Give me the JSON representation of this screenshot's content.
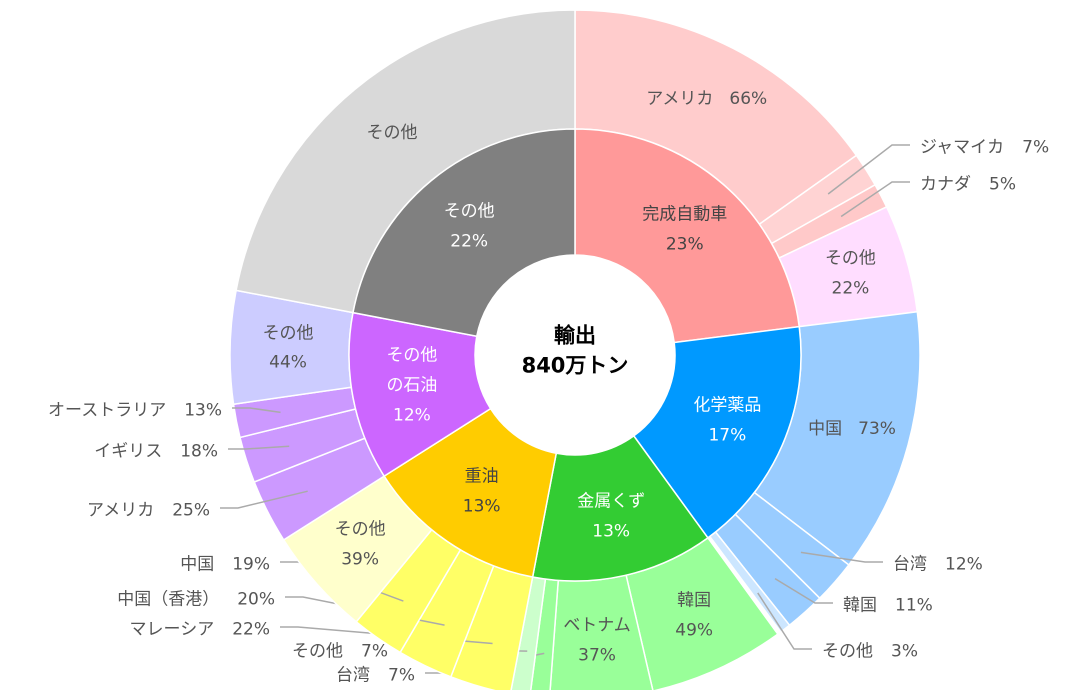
{
  "chart_data": {
    "type": "sunburst",
    "center_label": [
      "輸出",
      "840万トン"
    ],
    "nodes": [
      {
        "name": "完成自動車",
        "value": 23,
        "value_label": "23%",
        "color": "#ff9999",
        "children": [
          {
            "name": "アメリカ",
            "value": 66,
            "value_label": "66%",
            "color": "#ffcccc"
          },
          {
            "name": "ジャマイカ",
            "value": 7,
            "value_label": "7%",
            "color": "#ffd3d3"
          },
          {
            "name": "カナダ",
            "value": 5,
            "value_label": "5%",
            "color": "#ffc9c9"
          },
          {
            "name": "その他",
            "value": 22,
            "value_label": "22%",
            "color": "#ffddff"
          }
        ]
      },
      {
        "name": "化学薬品",
        "value": 17,
        "value_label": "17%",
        "color": "#0099ff",
        "children": [
          {
            "name": "中国",
            "value": 73,
            "value_label": "73%",
            "color": "#99ccff"
          },
          {
            "name": "台湾",
            "value": 12,
            "value_label": "12%",
            "color": "#99ccff"
          },
          {
            "name": "韓国",
            "value": 11,
            "value_label": "11%",
            "color": "#99ccff"
          },
          {
            "name": "その他",
            "value": 3,
            "value_label": "3%",
            "color": "#cce6ff"
          }
        ]
      },
      {
        "name": "金属くず",
        "value": 13,
        "value_label": "13%",
        "color": "#33cc33",
        "children": [
          {
            "name": "韓国",
            "value": 49,
            "value_label": "49%",
            "color": "#99ff99"
          },
          {
            "name": "ベトナム",
            "value": 37,
            "value_label": "37%",
            "color": "#99ff99"
          },
          {
            "name": "台湾",
            "value": 7,
            "value_label": "7%",
            "color": "#99ff99"
          },
          {
            "name": "その他",
            "value": 7,
            "value_label": "7%",
            "color": "#ccffcc"
          }
        ]
      },
      {
        "name": "重油",
        "value": 13,
        "value_label": "13%",
        "color": "#ffcc00",
        "children": [
          {
            "name": "マレーシア",
            "value": 22,
            "value_label": "22%",
            "color": "#ffff66"
          },
          {
            "name": "中国（香港）",
            "value": 20,
            "value_label": "20%",
            "color": "#ffff66"
          },
          {
            "name": "中国",
            "value": 19,
            "value_label": "19%",
            "color": "#ffff66"
          },
          {
            "name": "その他",
            "value": 39,
            "value_label": "39%",
            "color": "#ffffcc"
          }
        ]
      },
      {
        "name": "その他の石油",
        "value": 12,
        "value_label": "12%",
        "color": "#cc66ff",
        "children": [
          {
            "name": "アメリカ",
            "value": 25,
            "value_label": "25%",
            "color": "#cc99ff"
          },
          {
            "name": "イギリス",
            "value": 18,
            "value_label": "18%",
            "color": "#cc99ff"
          },
          {
            "name": "オーストラリア",
            "value": 13,
            "value_label": "13%",
            "color": "#cc99ff"
          },
          {
            "name": "その他",
            "value": 44,
            "value_label": "44%",
            "color": "#ccccff"
          }
        ]
      },
      {
        "name": "その他",
        "value": 22,
        "value_label": "22%",
        "color": "#808080",
        "children": [
          {
            "name": "その他",
            "value": 100,
            "color": "#d9d9d9"
          }
        ]
      }
    ]
  }
}
